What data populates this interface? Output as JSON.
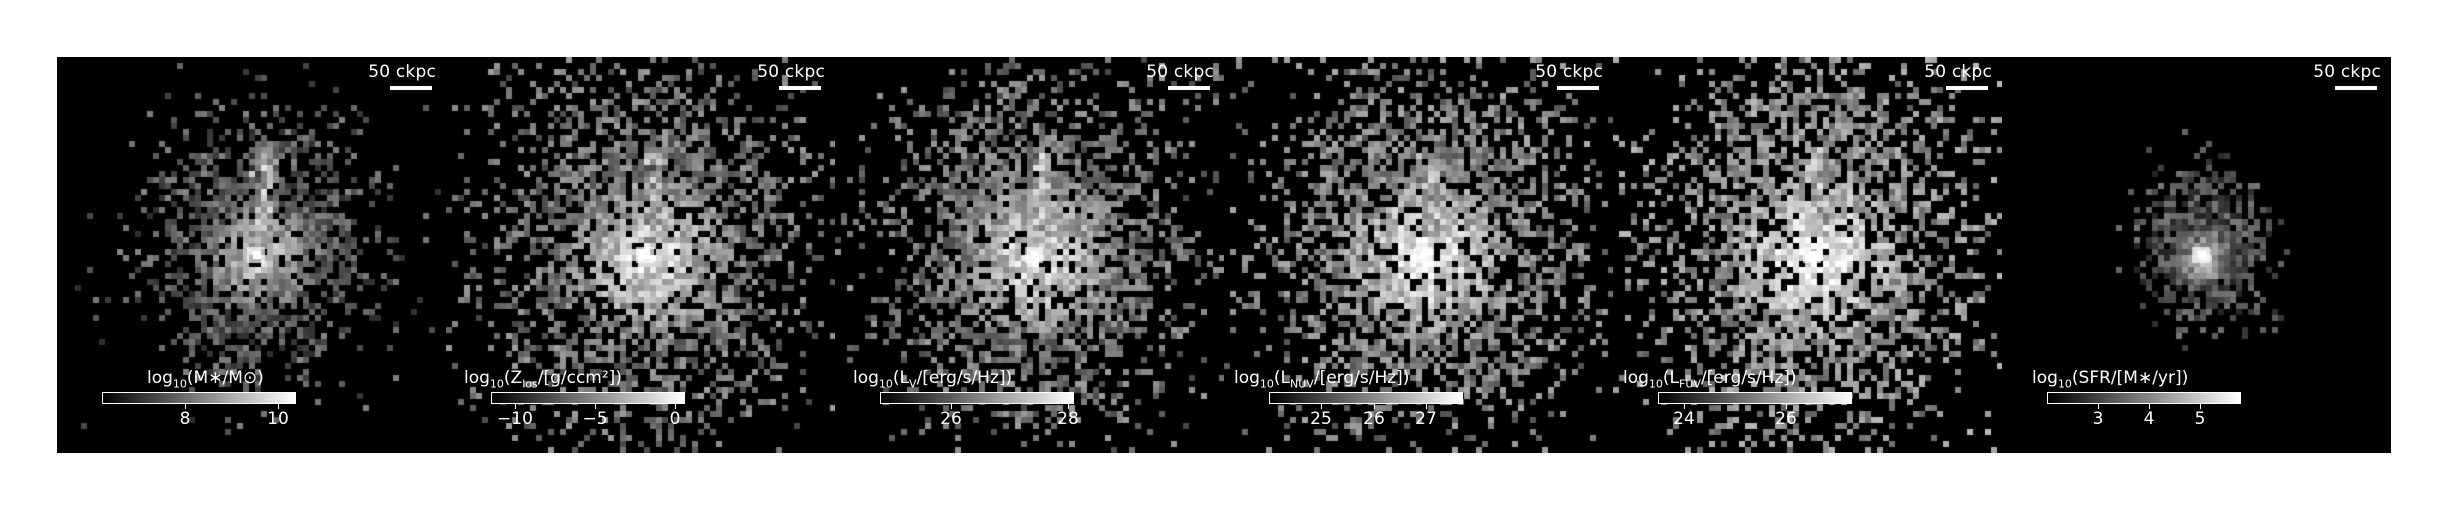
{
  "figure": {
    "scalebar_text": "50 ckpc",
    "panels": [
      {
        "id": "stellar-mass",
        "cbar": {
          "pre": "log",
          "sub": "10",
          "post": "(M∗/M⊙)"
        },
        "ticks": [
          {
            "value": 8,
            "label": "8"
          },
          {
            "value": 10,
            "label": "10"
          }
        ],
        "range": [
          6.2,
          10.4
        ],
        "blob": {
          "spread": 0.16,
          "density": 0.55,
          "base": 0.35,
          "core": 1.0,
          "stream": 0.55
        }
      },
      {
        "id": "metallicity",
        "cbar": {
          "pre": "log",
          "sub": "10",
          "post": "(Z",
          "sub2": "los",
          "post2": "/[g/ccm²])"
        },
        "ticks": [
          {
            "value": -10,
            "label": "−10"
          },
          {
            "value": -5,
            "label": "−5"
          },
          {
            "value": 0,
            "label": "0"
          }
        ],
        "range": [
          -11.5,
          0.6
        ],
        "blob": {
          "spread": 0.23,
          "density": 0.95,
          "base": 0.45,
          "core": 1.0,
          "stream": 0.45
        }
      },
      {
        "id": "lum-v",
        "cbar": {
          "pre": "log",
          "sub": "10",
          "post": "(L",
          "sub2": "V",
          "post2": "/[erg/s/Hz])"
        },
        "ticks": [
          {
            "value": 26,
            "label": "26"
          },
          {
            "value": 28,
            "label": "28"
          }
        ],
        "range": [
          24.8,
          28.1
        ],
        "blob": {
          "spread": 0.22,
          "density": 0.9,
          "base": 0.45,
          "core": 1.0,
          "stream": 0.55
        }
      },
      {
        "id": "lum-nuv",
        "cbar": {
          "pre": "log",
          "sub": "10",
          "post": "(L",
          "sub2": "NUV",
          "post2": "/[erg/s/Hz])"
        },
        "ticks": [
          {
            "value": 25,
            "label": "25"
          },
          {
            "value": 26,
            "label": "26"
          },
          {
            "value": 27,
            "label": "27"
          }
        ],
        "range": [
          24.0,
          27.7
        ],
        "blob": {
          "spread": 0.24,
          "density": 0.95,
          "base": 0.5,
          "core": 1.0,
          "stream": 0.5
        }
      },
      {
        "id": "lum-fuv",
        "cbar": {
          "pre": "log",
          "sub": "10",
          "post": "(L",
          "sub2": "FUV",
          "post2": "/[erg/s/Hz])"
        },
        "ticks": [
          {
            "value": 24,
            "label": "24"
          },
          {
            "value": 26,
            "label": "26"
          }
        ],
        "range": [
          23.5,
          27.3
        ],
        "blob": {
          "spread": 0.24,
          "density": 1.0,
          "base": 0.55,
          "core": 1.0,
          "stream": 0.5
        }
      },
      {
        "id": "sfr",
        "cbar": {
          "pre": "log",
          "sub": "10",
          "post": "(SFR/[M∗/yr])"
        },
        "ticks": [
          {
            "value": 3,
            "label": "3"
          },
          {
            "value": 4,
            "label": "4"
          },
          {
            "value": 5,
            "label": "5"
          }
        ],
        "range": [
          2.0,
          5.8
        ],
        "blob": {
          "spread": 0.08,
          "density": 0.35,
          "base": 0.3,
          "core": 1.0,
          "stream": 0.0
        }
      }
    ]
  }
}
